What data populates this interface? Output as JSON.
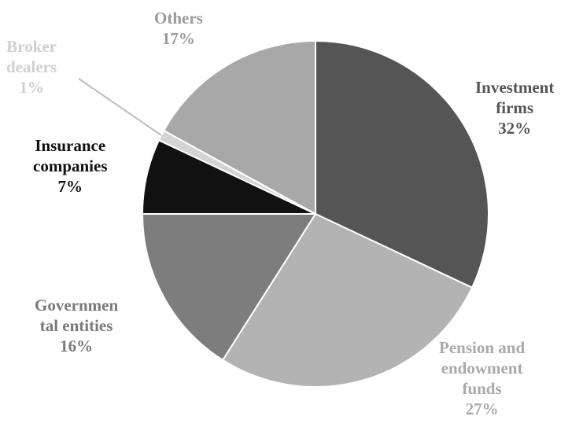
{
  "chart_data": {
    "type": "pie",
    "categories": [
      "Investment firms",
      "Pension and endowment funds",
      "Governmental entities",
      "Insurance companies",
      "Broker dealers",
      "Others"
    ],
    "values": [
      32,
      27,
      16,
      7,
      1,
      17
    ],
    "unit": "%",
    "colors": [
      "#555555",
      "#b3b3b3",
      "#7d7d7d",
      "#111111",
      "#d4d4d4",
      "#a8a8a8"
    ],
    "start_angle_deg": 0,
    "direction": "clockwise",
    "labels": [
      {
        "lines": [
          "Investment",
          "firms"
        ],
        "percent": "32%",
        "color": "#555555"
      },
      {
        "lines": [
          "Pension and",
          "endowment",
          "funds"
        ],
        "percent": "27%",
        "color": "#a9a9a9"
      },
      {
        "lines": [
          "Governmen",
          "tal entities"
        ],
        "percent": "16%",
        "color": "#7a7a7a"
      },
      {
        "lines": [
          "Insurance",
          "companies"
        ],
        "percent": "7%",
        "color": "#111111"
      },
      {
        "lines": [
          "Broker",
          "dealers"
        ],
        "percent": "1%",
        "color": "#d0d0d0"
      },
      {
        "lines": [
          "Others"
        ],
        "percent": "17%",
        "color": "#9a9a9a"
      }
    ]
  }
}
